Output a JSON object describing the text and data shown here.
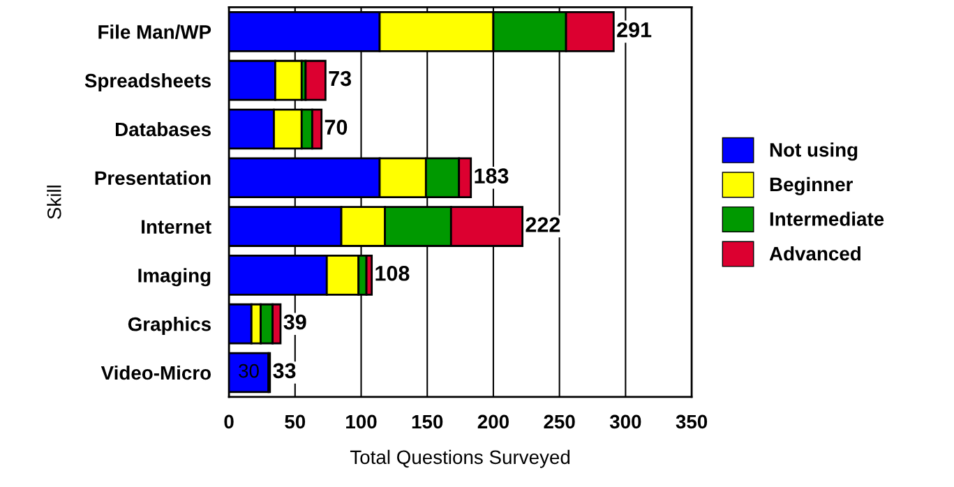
{
  "chart_data": {
    "type": "bar",
    "orientation": "horizontal",
    "stacked": true,
    "categories": [
      "File Man/WP",
      "Spreadsheets",
      "Databases",
      "Presentation",
      "Internet",
      "Imaging",
      "Graphics",
      "Video-Micro"
    ],
    "series": [
      {
        "name": "Not using",
        "color": "#0000ff",
        "values": [
          114,
          35,
          34,
          114,
          85,
          74,
          17,
          30
        ],
        "value_labels": [
          null,
          null,
          null,
          null,
          null,
          null,
          null,
          "30"
        ]
      },
      {
        "name": "Beginner",
        "color": "#ffff00",
        "values": [
          86,
          20,
          21,
          35,
          33,
          24,
          7,
          null
        ]
      },
      {
        "name": "Intermediate",
        "color": "#009900",
        "values": [
          55,
          3,
          8,
          25,
          50,
          6,
          9,
          null
        ]
      },
      {
        "name": "Advanced",
        "color": "#dc0030",
        "values": [
          36,
          15,
          7,
          9,
          54,
          4,
          6,
          1
        ]
      }
    ],
    "totals": [
      "291",
      "73",
      "70",
      "183",
      "222",
      "108",
      "39",
      "33"
    ],
    "xlim": [
      0,
      350
    ],
    "xticks": [
      0,
      50,
      100,
      150,
      200,
      250,
      300,
      350
    ],
    "xlabel": "Total Questions Surveyed",
    "ylabel": "Skill",
    "grid": "x",
    "legend": "right"
  }
}
